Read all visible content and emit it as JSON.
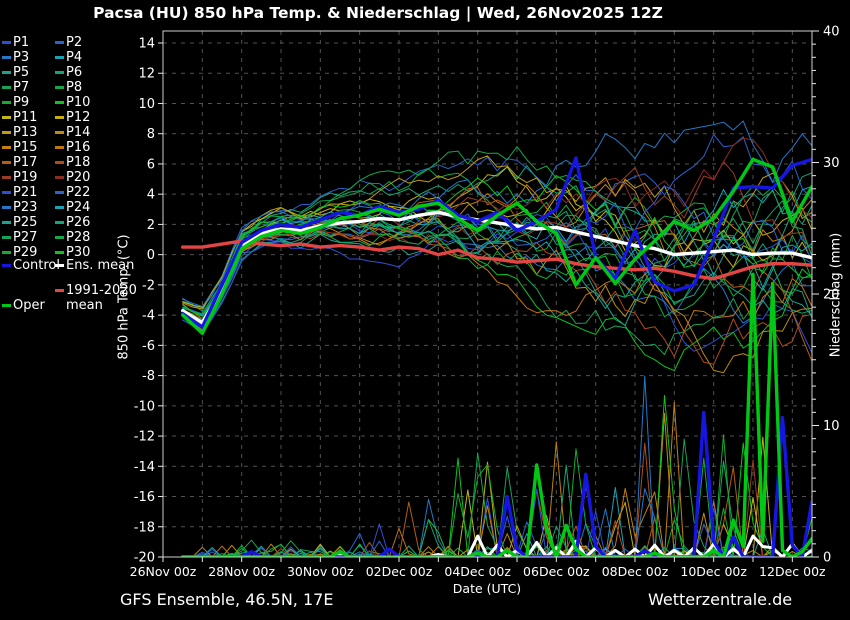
{
  "title": "Pacsa  (HU)  850 hPa Temp. & Niederschlag | Wed, 26Nov2025 12Z",
  "footer": {
    "left": "GFS Ensemble, 46.5N, 17E",
    "right": "Wetterzentrale.de"
  },
  "chart_data": {
    "type": "line",
    "title": "Pacsa  (HU)  850 hPa Temp. & Niederschlag | Wed, 26Nov2025 12Z",
    "xlabel": "Date (UTC)",
    "ylabel_left": "850 hPa Temp. (°C)",
    "ylabel_right": "Niederschlag (mm)",
    "x_ticks": [
      "26Nov 00z",
      "28Nov 00z",
      "30Nov 00z",
      "02Dec 00z",
      "04Dec 00z",
      "06Dec 00z",
      "08Dec 00z",
      "10Dec 00z",
      "12Dec 00z"
    ],
    "x_tick_days": [
      0,
      2,
      4,
      6,
      8,
      10,
      12,
      14,
      16
    ],
    "x_range_days": [
      0,
      16.5
    ],
    "y_left": {
      "min": -20,
      "max": 14,
      "tick_step": 2
    },
    "y_right": {
      "min": 0,
      "max": 40,
      "label_ticks": [
        0,
        10,
        20,
        30,
        40
      ],
      "minor_step": 1
    },
    "grid": {
      "show": true,
      "color": "#525252",
      "vertical_every_days": 1,
      "horizontal_every_degc": 2
    },
    "colors": {
      "background": "#000000",
      "frame": "#d0d0d0",
      "text": "#ffffff",
      "control": "#1616e0",
      "ens_mean": "#ffffff",
      "climate_mean": "#e34444",
      "oper": "#00c814",
      "members": [
        "#2e4fd4",
        "#2b63cf",
        "#2478c8",
        "#18a2b8",
        "#17a590",
        "#16a476",
        "#15a35a",
        "#13a748",
        "#12ad32",
        "#0cc41c",
        "#c3b713",
        "#c4ae10",
        "#c19c10",
        "#bf8c0f",
        "#c2810e",
        "#c4740d",
        "#b65d13",
        "#b14b17",
        "#9e3923",
        "#8d2b1f",
        "#2e4fd4",
        "#2b63cf",
        "#2478c8",
        "#18a2b8",
        "#17a590",
        "#16a476",
        "#15a35a",
        "#13a748",
        "#12ad32",
        "#0cc41c"
      ]
    },
    "legend": {
      "members": [
        "P1",
        "P2",
        "P3",
        "P4",
        "P5",
        "P6",
        "P7",
        "P8",
        "P9",
        "P10",
        "P11",
        "P12",
        "P13",
        "P14",
        "P15",
        "P16",
        "P17",
        "P18",
        "P19",
        "P20",
        "P21",
        "P22",
        "P23",
        "P24",
        "P25",
        "P26",
        "P27",
        "P28",
        "P29",
        "P30"
      ],
      "control_label": "Control",
      "ens_mean_label": "Ens. mean",
      "climate_label": "1991-2020 mean",
      "oper_label": "Oper"
    },
    "time_days": [
      0.5,
      1,
      1.5,
      2,
      2.5,
      3,
      3.5,
      4,
      4.5,
      5,
      5.5,
      6,
      6.5,
      7,
      7.5,
      8,
      8.5,
      9,
      9.5,
      10,
      10.5,
      11,
      11.5,
      12,
      12.5,
      13,
      13.5,
      14,
      14.5,
      15,
      15.5,
      16,
      16.5
    ],
    "series": {
      "ens_mean_temp": [
        -3.7,
        -4.5,
        -2.3,
        0.6,
        1.4,
        1.7,
        1.6,
        1.9,
        2.1,
        2.2,
        2.4,
        2.3,
        2.6,
        2.8,
        2.5,
        2.3,
        2.1,
        1.9,
        1.7,
        1.8,
        1.5,
        1.2,
        0.9,
        0.6,
        0.4,
        0.0,
        0.1,
        0.2,
        0.3,
        0.0,
        0.1,
        0.1,
        -0.2
      ],
      "control_temp": [
        -3.9,
        -4.8,
        -2.0,
        0.8,
        1.6,
        2.0,
        1.8,
        2.3,
        2.8,
        2.6,
        3.2,
        2.8,
        3.0,
        3.6,
        2.6,
        2.2,
        2.8,
        1.6,
        2.2,
        3.0,
        6.4,
        -0.2,
        -1.6,
        1.6,
        -1.8,
        -2.4,
        -2.0,
        1.0,
        4.4,
        4.5,
        4.4,
        5.9,
        6.3
      ],
      "oper_temp": [
        -4.0,
        -5.2,
        -2.6,
        0.4,
        1.2,
        1.6,
        1.4,
        1.8,
        2.4,
        2.6,
        3.0,
        2.6,
        3.2,
        3.4,
        2.4,
        1.6,
        2.6,
        3.4,
        2.2,
        1.4,
        -2.0,
        -0.2,
        -1.9,
        -0.3,
        0.9,
        2.2,
        1.6,
        2.4,
        4.2,
        6.3,
        5.8,
        2.2,
        4.5
      ],
      "climate_mean_temp": [
        0.5,
        0.5,
        0.7,
        0.9,
        0.7,
        0.6,
        0.7,
        0.5,
        0.6,
        0.5,
        0.3,
        0.5,
        0.4,
        0.0,
        0.3,
        -0.2,
        -0.3,
        -0.5,
        -0.4,
        -0.3,
        -0.6,
        -0.8,
        -0.9,
        -1.0,
        -0.9,
        -1.1,
        -1.4,
        -1.6,
        -1.2,
        -0.8,
        -0.6,
        -0.6,
        -0.7
      ]
    },
    "precip_events": {
      "oper": [
        [
          4.5,
          0.4
        ],
        [
          8.0,
          0.3
        ],
        [
          8.75,
          0.5
        ],
        [
          9.5,
          7.0
        ],
        [
          9.75,
          2.2
        ],
        [
          10.25,
          2.4
        ],
        [
          10.5,
          0.6
        ],
        [
          12.5,
          0.3
        ],
        [
          14.0,
          0.5
        ],
        [
          14.5,
          2.8
        ],
        [
          14.75,
          0.8
        ],
        [
          15.0,
          21.5
        ],
        [
          15.25,
          1.2
        ],
        [
          15.5,
          20.8
        ],
        [
          15.75,
          0.5
        ],
        [
          16.25,
          0.4
        ],
        [
          16.5,
          1.4
        ]
      ],
      "control": [
        [
          2.25,
          0.4
        ],
        [
          5.75,
          0.6
        ],
        [
          8.75,
          4.6
        ],
        [
          9.0,
          0.6
        ],
        [
          10.75,
          6.3
        ],
        [
          11.0,
          0.8
        ],
        [
          12.25,
          0.5
        ],
        [
          13.75,
          11.0
        ],
        [
          14.0,
          1.2
        ],
        [
          14.5,
          1.5
        ],
        [
          15.75,
          10.6
        ],
        [
          16.0,
          0.9
        ],
        [
          16.5,
          4.2
        ]
      ],
      "ens_mean": [
        [
          4.5,
          0.2
        ],
        [
          7.0,
          0.2
        ],
        [
          8.0,
          1.6
        ],
        [
          8.5,
          0.9
        ],
        [
          9.0,
          0.5
        ],
        [
          9.5,
          1.1
        ],
        [
          10.0,
          0.7
        ],
        [
          10.5,
          1.2
        ],
        [
          11.0,
          0.7
        ],
        [
          11.5,
          0.5
        ],
        [
          12.0,
          0.6
        ],
        [
          12.5,
          0.9
        ],
        [
          13.0,
          0.5
        ],
        [
          13.5,
          0.7
        ],
        [
          14.0,
          1.0
        ],
        [
          14.5,
          0.6
        ],
        [
          15.0,
          1.6
        ],
        [
          15.25,
          0.8
        ],
        [
          15.5,
          0.7
        ],
        [
          16.0,
          1.0
        ],
        [
          16.5,
          0.5
        ]
      ]
    },
    "ensemble_generation": {
      "seed": 20251126,
      "count": 30,
      "step_days": 0.25,
      "temp_spread_by_day": [
        [
          0.5,
          0.7
        ],
        [
          1,
          0.9
        ],
        [
          1.5,
          0.9
        ],
        [
          2,
          1.0
        ],
        [
          3,
          1.3
        ],
        [
          4,
          1.6
        ],
        [
          5,
          1.9
        ],
        [
          6,
          2.2
        ],
        [
          7,
          2.6
        ],
        [
          8,
          3.2
        ],
        [
          9,
          3.6
        ],
        [
          10,
          4.2
        ],
        [
          11,
          4.6
        ],
        [
          12,
          5.2
        ],
        [
          13,
          5.4
        ],
        [
          14,
          5.6
        ],
        [
          15,
          5.9
        ],
        [
          16.5,
          6.2
        ]
      ],
      "precip_max_by_day": [
        [
          0.5,
          0
        ],
        [
          2,
          1.2
        ],
        [
          4,
          2
        ],
        [
          5,
          3
        ],
        [
          6,
          6
        ],
        [
          7,
          9
        ],
        [
          8,
          11
        ],
        [
          9,
          8
        ],
        [
          10,
          9
        ],
        [
          11,
          8
        ],
        [
          12,
          15
        ],
        [
          13,
          14
        ],
        [
          14,
          12
        ],
        [
          15,
          10
        ],
        [
          16.5,
          11
        ]
      ]
    }
  }
}
